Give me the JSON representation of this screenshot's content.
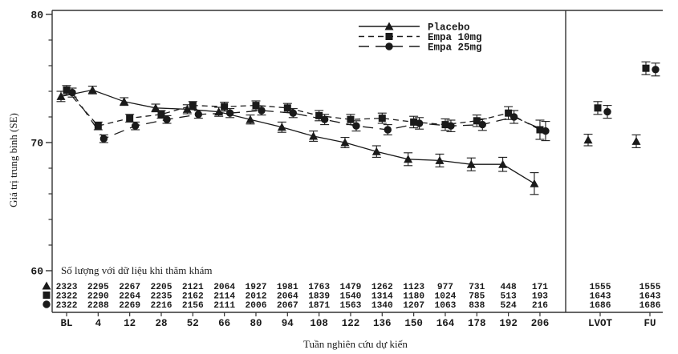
{
  "figure_name": "mean-egfr-over-time-chart",
  "colors": {
    "ink": "#1a1a1a",
    "frame": "#333333"
  },
  "legend": {
    "items": [
      {
        "label": "Placebo",
        "marker": "triangle",
        "line": "solid"
      },
      {
        "label": "Empa 10mg",
        "marker": "square",
        "line": "dashed"
      },
      {
        "label": "Empa 25mg",
        "marker": "circle",
        "line": "long-dashed"
      }
    ]
  },
  "chart_data": {
    "type": "line",
    "title": "",
    "ylabel": "Giá trị trung bình (SE)",
    "xlabel": "Tuần nghiên cứu dự kiến",
    "ylim": [
      60,
      80
    ],
    "y_major_ticks": [
      80,
      70,
      60
    ],
    "y_minor_step": 2,
    "grid": "off",
    "legend_position": "top-center-inside",
    "x_categories": [
      "BL",
      "4",
      "12",
      "28",
      "52",
      "66",
      "80",
      "94",
      "108",
      "122",
      "136",
      "150",
      "164",
      "178",
      "192",
      "206"
    ],
    "x_extra_categories": [
      "LVOT",
      "FU"
    ],
    "series": [
      {
        "name": "Placebo",
        "marker": "triangle",
        "line": "solid",
        "values": [
          73.6,
          74.1,
          73.2,
          72.7,
          72.6,
          72.4,
          71.8,
          71.2,
          70.5,
          70.0,
          69.3,
          68.7,
          68.6,
          68.3,
          68.3,
          66.8
        ],
        "se": [
          0.4,
          0.3,
          0.3,
          0.3,
          0.35,
          0.35,
          0.35,
          0.4,
          0.4,
          0.4,
          0.45,
          0.5,
          0.5,
          0.5,
          0.55,
          0.85
        ],
        "lvot": {
          "value": 70.2,
          "se": 0.45
        },
        "fu": {
          "value": 70.1,
          "se": 0.5
        }
      },
      {
        "name": "Empa 10mg",
        "marker": "square",
        "line": "dashed",
        "values": [
          74.1,
          71.3,
          71.9,
          72.2,
          72.9,
          72.8,
          72.9,
          72.7,
          72.1,
          71.8,
          71.9,
          71.6,
          71.4,
          71.7,
          72.3,
          71.0
        ],
        "se": [
          0.35,
          0.3,
          0.3,
          0.3,
          0.3,
          0.35,
          0.35,
          0.35,
          0.4,
          0.4,
          0.4,
          0.45,
          0.45,
          0.45,
          0.5,
          0.75
        ],
        "lvot": {
          "value": 72.7,
          "se": 0.5
        },
        "fu": {
          "value": 75.8,
          "se": 0.5
        }
      },
      {
        "name": "Empa 25mg",
        "marker": "circle",
        "line": "long-dashed",
        "values": [
          73.9,
          70.3,
          71.3,
          71.8,
          72.2,
          72.3,
          72.5,
          72.3,
          71.8,
          71.3,
          71.0,
          71.5,
          71.3,
          71.4,
          72.0,
          70.9
        ],
        "se": [
          0.35,
          0.3,
          0.3,
          0.3,
          0.3,
          0.35,
          0.35,
          0.35,
          0.4,
          0.4,
          0.4,
          0.45,
          0.45,
          0.45,
          0.5,
          0.75
        ],
        "lvot": {
          "value": 72.4,
          "se": 0.5
        },
        "fu": {
          "value": 75.7,
          "se": 0.5
        }
      }
    ]
  },
  "risk_table": {
    "caption": "Số lượng với dữ liệu khi thăm khám",
    "rows": [
      {
        "series": "Placebo",
        "marker": "triangle",
        "values": [
          "2323",
          "2295",
          "2267",
          "2205",
          "2121",
          "2064",
          "1927",
          "1981",
          "1763",
          "1479",
          "1262",
          "1123",
          "977",
          "731",
          "448",
          "171",
          "1555",
          "1555"
        ]
      },
      {
        "series": "Empa 10mg",
        "marker": "square",
        "values": [
          "2322",
          "2290",
          "2264",
          "2235",
          "2162",
          "2114",
          "2012",
          "2064",
          "1839",
          "1540",
          "1314",
          "1180",
          "1024",
          "785",
          "513",
          "193",
          "1643",
          "1643"
        ]
      },
      {
        "series": "Empa 25mg",
        "marker": "circle",
        "values": [
          "2322",
          "2288",
          "2269",
          "2216",
          "2156",
          "2111",
          "2006",
          "2067",
          "1871",
          "1563",
          "1340",
          "1207",
          "1063",
          "838",
          "524",
          "216",
          "1686",
          "1686"
        ]
      }
    ]
  }
}
